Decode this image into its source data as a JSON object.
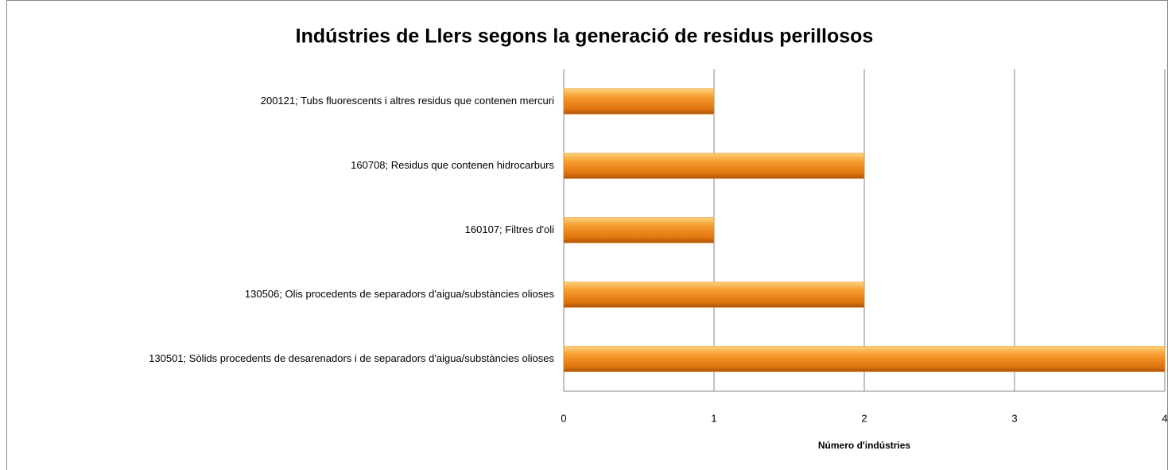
{
  "chart_data": {
    "type": "bar",
    "orientation": "horizontal",
    "title": "Indústries de Llers segons la generació de residus perillosos",
    "x_label": "Número d'indústries",
    "categories": [
      "200121; Tubs fluorescents i altres residus que contenen mercuri",
      "160708; Residus que contenen hidrocarburs",
      "160107; Filtres d'oli",
      "130506; Olis procedents de separadors d'aigua/substàncies  olioses",
      "130501; Sòlids procedents de desarenadors i  de separadors d'aigua/substàncies  olioses"
    ],
    "values": [
      1,
      2,
      1,
      2,
      4
    ],
    "color": "#f08a1e",
    "xlim": [
      0,
      4
    ],
    "xticks": [
      0,
      1,
      2,
      3,
      4
    ],
    "grid": true
  }
}
